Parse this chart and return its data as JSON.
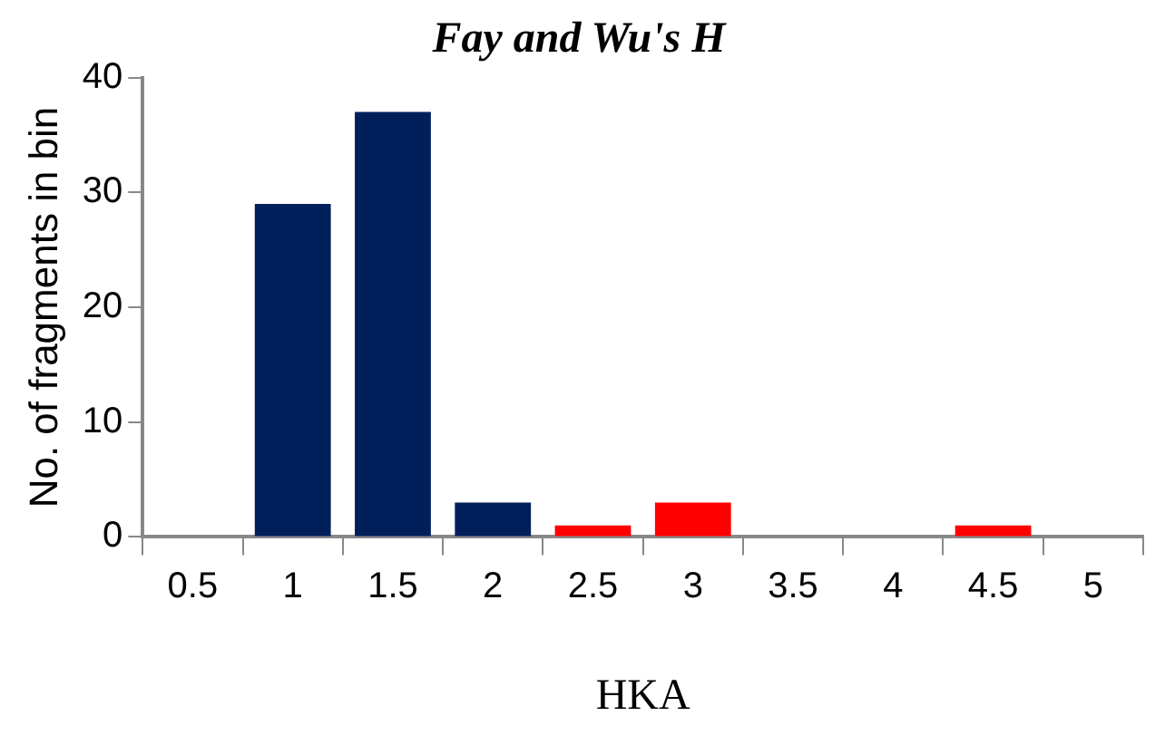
{
  "chart_data": {
    "type": "bar",
    "title": "Fay and Wu's H",
    "xlabel": "HKA",
    "ylabel": "No. of fragments in bin",
    "categories": [
      "0.5",
      "1",
      "1.5",
      "2",
      "2.5",
      "3",
      "3.5",
      "4",
      "4.5",
      "5"
    ],
    "values": [
      0,
      29,
      37,
      3,
      1,
      3,
      0,
      0,
      1,
      0
    ],
    "colors": [
      "#001f5b",
      "#001f5b",
      "#001f5b",
      "#001f5b",
      "#ff0000",
      "#ff0000",
      "#ff0000",
      "#ff0000",
      "#ff0000",
      "#ff0000"
    ],
    "ylim": [
      0,
      40
    ],
    "yticks": [
      0,
      10,
      20,
      30,
      40
    ],
    "legend": false
  }
}
